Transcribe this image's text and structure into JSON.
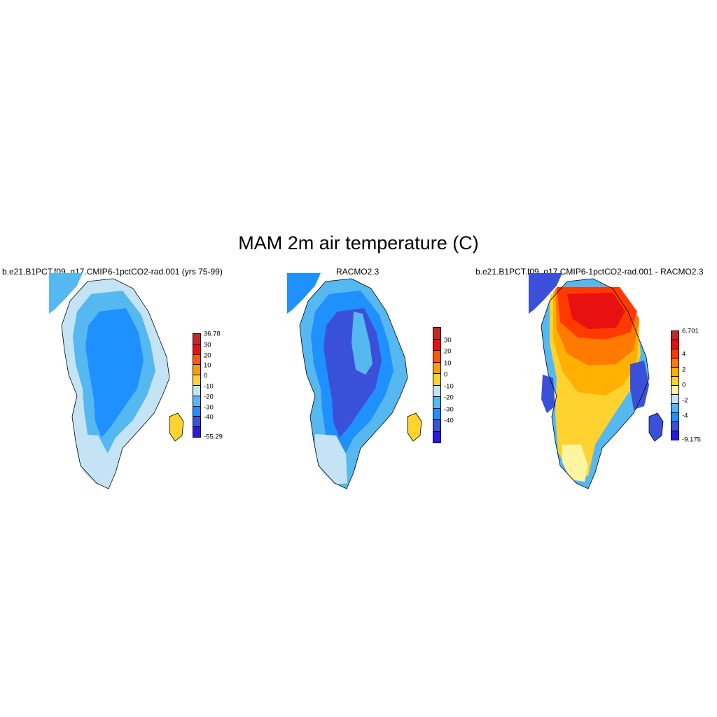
{
  "title": "MAM 2m air temperature (C)",
  "panels": [
    {
      "title": "b.e21.B1PCT.f09_g17.CMIP6-1pctCO2-rad.001 (yrs 75-99)",
      "colorbar": {
        "colors": [
          "#2b17e6",
          "#3a50d9",
          "#1e90ff",
          "#55b8f0",
          "#c4e4f6",
          "#fed330",
          "#ff9f00",
          "#ff5a00",
          "#e81010",
          "#c42828"
        ],
        "labels": [
          "-55.29",
          "-40",
          "-30",
          "-20",
          "-10",
          "0",
          "10",
          "20",
          "30",
          "36.78"
        ]
      },
      "field": {
        "interior": "#1e90ff",
        "inner_ring": "#55b8f0",
        "coast": "#c4e4f6",
        "north_ridge": "#1e90ff",
        "south_tip": "#c4e4f6",
        "iceland": "#fed330"
      }
    },
    {
      "title": "RACMO2.3",
      "colorbar": {
        "colors": [
          "#2b17e6",
          "#3a50d9",
          "#1e90ff",
          "#55b8f0",
          "#c4e4f6",
          "#fed330",
          "#ff9f00",
          "#ff5a00",
          "#e81010",
          "#c42828"
        ],
        "labels": [
          "-40",
          "-30",
          "-20",
          "-10",
          "0",
          "10",
          "20",
          "30"
        ]
      },
      "field": {
        "interior": "#3a50d9",
        "inner_ring": "#1e90ff",
        "coast": "#55b8f0",
        "north_ridge": "#55b8f0",
        "south_tip": "#c4e4f6",
        "iceland": "#fed330"
      }
    },
    {
      "title": "b.e21.B1PCT.f09_g17.CMIP6-1pctCO2-rad.001 - RACMO2.3",
      "colorbar": {
        "colors": [
          "#2b17e6",
          "#3a50d9",
          "#1e90ff",
          "#55b8f0",
          "#c4e4f6",
          "#fff5a0",
          "#fed330",
          "#ffb000",
          "#ff7a00",
          "#ff3a00",
          "#e81010",
          "#c42828"
        ],
        "labels": [
          "-9.175",
          "-4",
          "-2",
          "0",
          "2",
          "4",
          "6.701"
        ]
      },
      "field": {
        "north": "#e81010",
        "north_ring": "#ff3a00",
        "middle": "#ff7a00",
        "south_middle": "#ffb000",
        "south": "#fed330",
        "tip": "#fff5a0",
        "east_coast": "#3a50d9",
        "edge": "#55b8f0",
        "iceland": "#3a50d9"
      }
    }
  ]
}
